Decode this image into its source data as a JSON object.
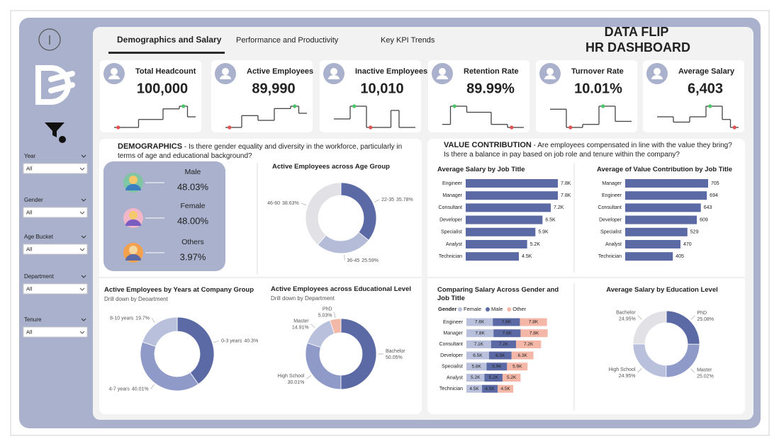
{
  "header": {
    "tabs": [
      "Demographics and Salary",
      "Performance and Productivity",
      "Key KPI Trends"
    ],
    "title_lines": [
      "DATA FLIP",
      "HR DASHBOARD"
    ]
  },
  "filters": [
    {
      "label": "Year",
      "value": "All"
    },
    {
      "label": "Gender",
      "value": "All"
    },
    {
      "label": "Age Bucket",
      "value": "All"
    },
    {
      "label": "Department",
      "value": "All"
    },
    {
      "label": "Tenure",
      "value": "All"
    }
  ],
  "kpi_trend_colors": {
    "line": "#444444",
    "low": "#e05252",
    "high": "#4cc46a"
  },
  "kpis": [
    {
      "title": "Total Headcount",
      "value": "100,000",
      "trend": [
        2,
        2,
        2,
        5,
        5,
        5,
        9,
        9,
        10,
        6
      ]
    },
    {
      "title": "Active Employees",
      "value": "89,990",
      "trend": [
        1,
        1,
        6,
        6,
        4,
        4,
        9,
        9,
        10,
        7
      ]
    },
    {
      "title": "Inactive Employees",
      "value": "10,010",
      "trend": [
        5,
        5,
        8,
        8,
        3,
        3,
        3,
        7,
        3,
        3
      ]
    },
    {
      "title": "Retention Rate",
      "value": "89.99%",
      "trend": [
        4,
        10,
        10,
        8,
        8,
        8,
        4,
        4,
        3,
        3
      ]
    },
    {
      "title": "Turnover Rate",
      "value": "10.01%",
      "trend": [
        7,
        7,
        1,
        1,
        2,
        2,
        8,
        8,
        3,
        3
      ]
    },
    {
      "title": "Average Salary",
      "value": "6,403",
      "trend": [
        5,
        5,
        3,
        3,
        5,
        5,
        9,
        9,
        4,
        1
      ]
    }
  ],
  "demographics": {
    "heading": "DEMOGRAPHICS",
    "question": "- Is there gender equality and diversity in the workforce, particularly in terms of age and educational background?",
    "gender": [
      {
        "label": "Male",
        "value": "48.03%"
      },
      {
        "label": "Female",
        "value": "48.00%"
      },
      {
        "label": "Others",
        "value": "3.97%"
      }
    ]
  },
  "value_contribution": {
    "heading": "VALUE CONTRIBUTION",
    "question": "- Are employees compensated in line with the value they bring? Is there a balance in pay based on job role and tenure within the company?"
  },
  "chart_data": [
    {
      "type": "donut",
      "title": "Active Employees across Age Group",
      "categories": [
        "22-35",
        "36-45",
        "46-60"
      ],
      "values": [
        35.78,
        25.59,
        38.63
      ],
      "value_labels": [
        "35.78%",
        "25.59%",
        "38.63%"
      ],
      "colors": [
        "#5b6aa5",
        "#b5bcd8",
        "#e2e2e6"
      ]
    },
    {
      "type": "bar",
      "title": "Average Salary by Job Title",
      "categories": [
        "Engineer",
        "Manager",
        "Consultant",
        "Developer",
        "Specialist",
        "Analyst",
        "Technician"
      ],
      "values": [
        7.8,
        7.8,
        7.2,
        6.5,
        5.9,
        5.2,
        4.5
      ],
      "value_labels": [
        "7.8K",
        "7.8K",
        "7.2K",
        "6.5K",
        "5.9K",
        "5.2K",
        "4.5K"
      ],
      "color": "#5b6aa5"
    },
    {
      "type": "bar",
      "title": "Average of Value Contribution by Job Title",
      "categories": [
        "Manager",
        "Engineer",
        "Consultant",
        "Developer",
        "Specialist",
        "Analyst",
        "Technician"
      ],
      "values": [
        705,
        694,
        643,
        609,
        529,
        470,
        405
      ],
      "color": "#5b6aa5"
    },
    {
      "type": "donut",
      "title": "Active Employees by Years at Company Group",
      "subtitle": "Drill down by Deoartment",
      "categories": [
        "0-3 years",
        "4-7 years",
        "8-10 years"
      ],
      "values": [
        40.3,
        40.01,
        19.7
      ],
      "value_labels": [
        "40.3%",
        "40.01%",
        "19.7%"
      ],
      "colors": [
        "#5b6aa5",
        "#8f9ac8",
        "#b8c0dc"
      ]
    },
    {
      "type": "donut",
      "title": "Active Employees across Educational Level",
      "subtitle": "Drill down by Department",
      "categories": [
        "Bachelor",
        "High School",
        "Master",
        "PhD"
      ],
      "values": [
        50.05,
        30.01,
        14.91,
        5.03
      ],
      "value_labels": [
        "50.05%",
        "30.01%",
        "14.91%",
        "5.03%"
      ],
      "colors": [
        "#5b6aa5",
        "#8f9ac8",
        "#b8c0dc",
        "#f2b8a8"
      ]
    },
    {
      "type": "stacked_bar",
      "title": "Comparing Salary Across Gender and Job Title",
      "legend_title": "Gender",
      "categories": [
        "Engineer",
        "Manager",
        "Consultant",
        "Developer",
        "Specialist",
        "Analyst",
        "Technician"
      ],
      "series": [
        {
          "name": "Female",
          "color": "#b8c0dc",
          "values": [
            7.6,
            7.8,
            7.1,
            6.5,
            5.8,
            5.2,
            4.5
          ],
          "value_labels": [
            "7.6K",
            "7.8K",
            "7.1K",
            "6.5K",
            "5.8K",
            "5.2K",
            "4.5K"
          ]
        },
        {
          "name": "Male",
          "color": "#5b6aa5",
          "values": [
            7.8,
            7.8,
            7.2,
            6.5,
            5.9,
            5.2,
            4.5
          ],
          "value_labels": [
            "7.8K",
            "7.8K",
            "7.2K",
            "6.5K",
            "5.9K",
            "5.2K",
            "4.5K"
          ]
        },
        {
          "name": "Other",
          "color": "#f4b6a6",
          "values": [
            7.8,
            7.8,
            7.2,
            6.3,
            5.9,
            5.2,
            4.5
          ],
          "value_labels": [
            "7.8K",
            "7.8K",
            "7.2K",
            "6.3K",
            "5.9K",
            "5.2K",
            "4.5K"
          ]
        }
      ]
    },
    {
      "type": "donut",
      "title": "Average Salary by Education Level",
      "categories": [
        "PhD",
        "Master",
        "High School",
        "Bachelor"
      ],
      "values": [
        25.08,
        25.02,
        24.95,
        24.95
      ],
      "value_labels": [
        "25.08%",
        "25.02%",
        "24.95%",
        "24.95%"
      ],
      "colors": [
        "#5b6aa5",
        "#8f9ac8",
        "#b8c0dc",
        "#e2e2e6"
      ]
    }
  ]
}
